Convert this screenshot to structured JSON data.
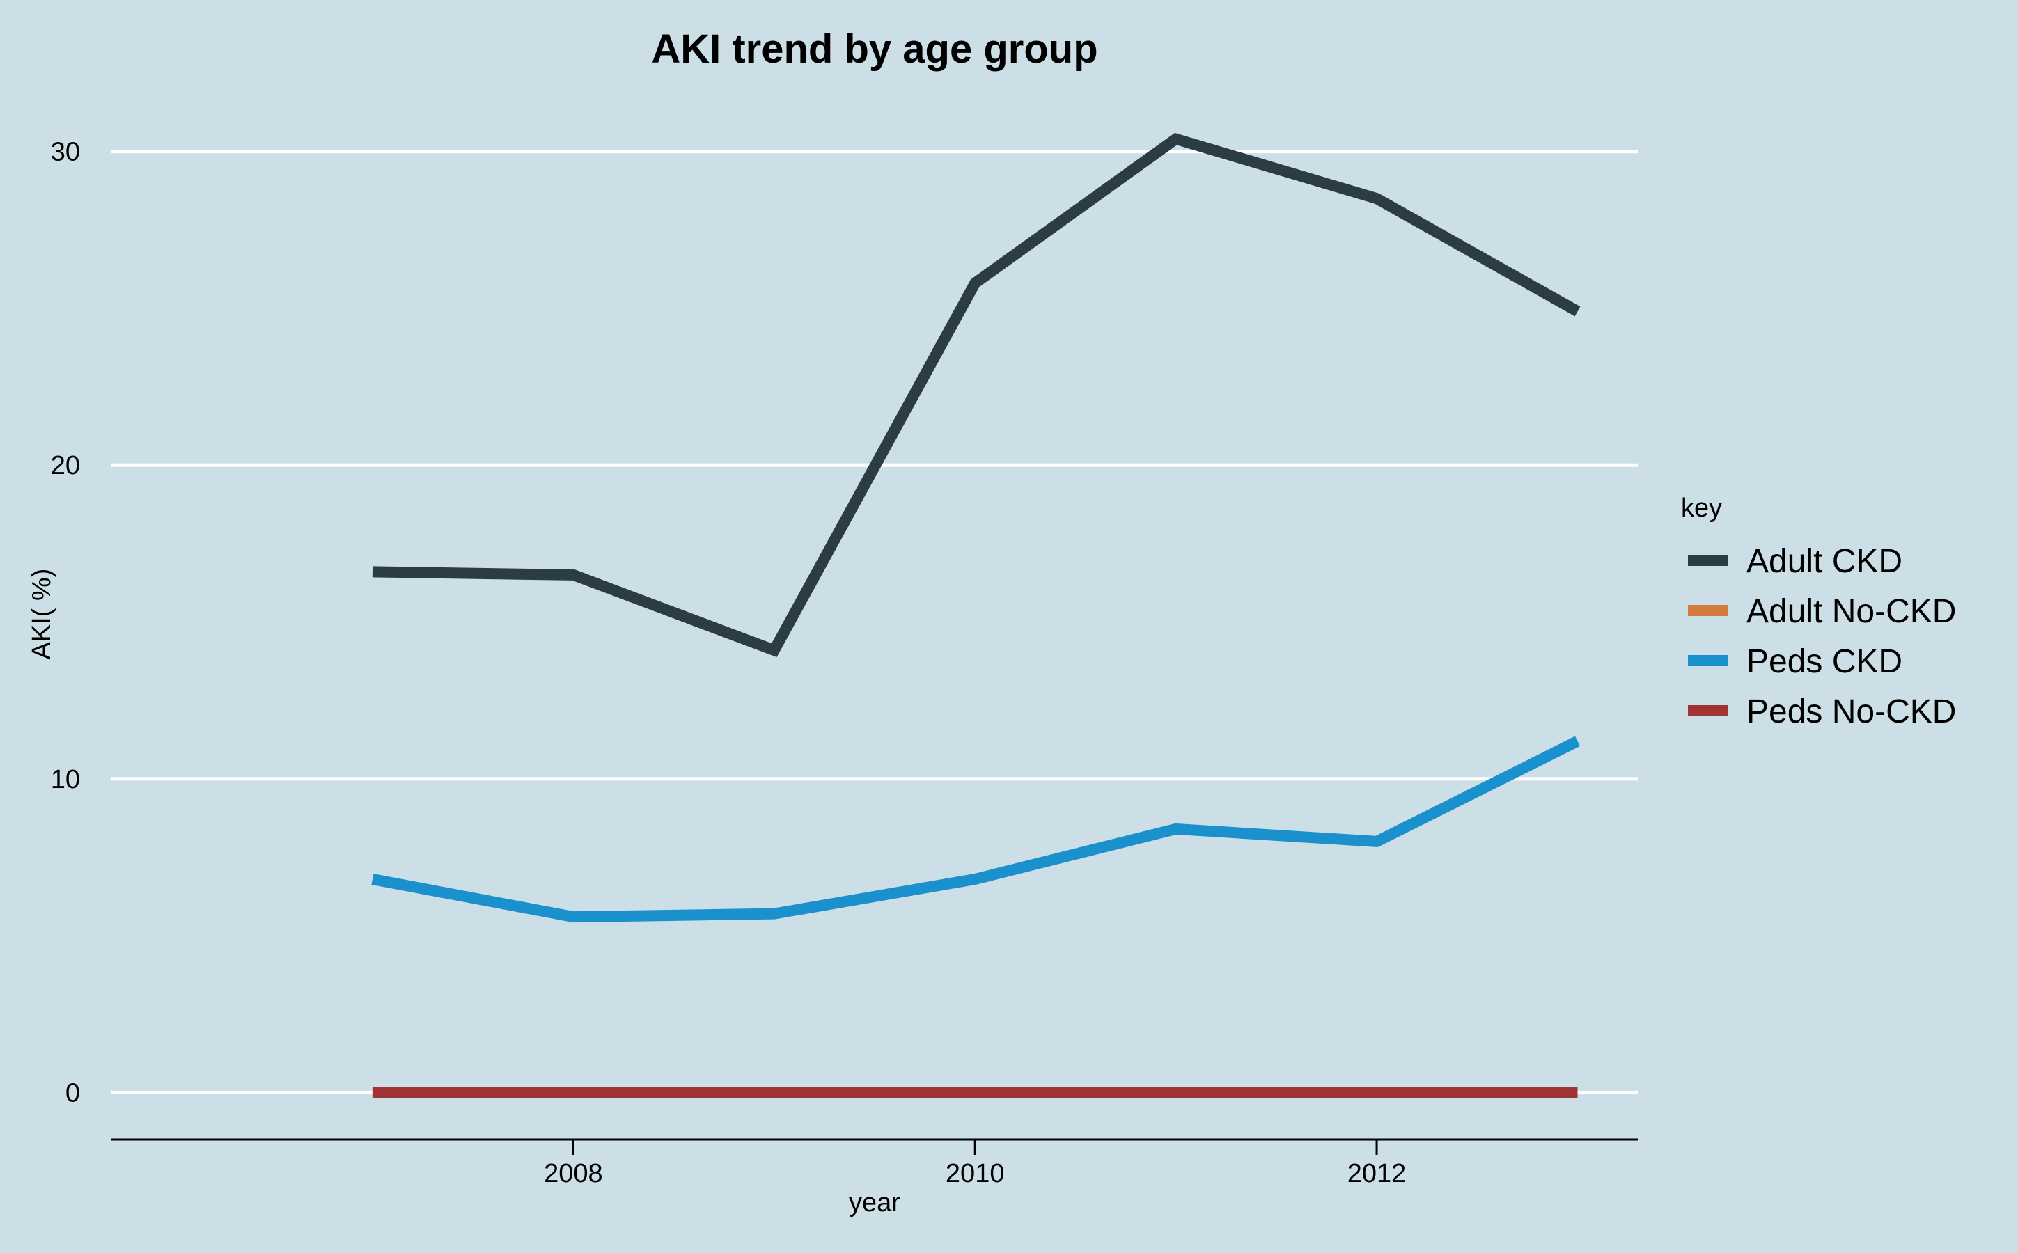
{
  "chart_data": {
    "type": "line",
    "title": "AKI trend by age group",
    "xlabel": "year",
    "ylabel": "AKI( %)",
    "x": [
      2007,
      2008,
      2009,
      2010,
      2011,
      2012,
      2013
    ],
    "xticks": [
      2008,
      2010,
      2012
    ],
    "yticks": [
      0,
      10,
      20,
      30
    ],
    "xlim": [
      2005.7,
      2013.3
    ],
    "ylim": [
      -1.5,
      31.5
    ],
    "grid": "horizontal",
    "legend_title": "key",
    "legend_position": "right",
    "series": [
      {
        "name": "Adult CKD",
        "color": "#2b3d43",
        "values": [
          16.6,
          16.5,
          14.1,
          25.8,
          30.4,
          28.5,
          24.9
        ]
      },
      {
        "name": "Adult No-CKD",
        "color": "#d27b3a",
        "values": [
          0,
          0,
          0,
          0,
          0,
          0,
          0
        ]
      },
      {
        "name": "Peds CKD",
        "color": "#1a91cc",
        "values": [
          6.8,
          5.6,
          5.7,
          6.8,
          8.4,
          8.0,
          11.2
        ]
      },
      {
        "name": "Peds No-CKD",
        "color": "#a03333",
        "values": [
          0,
          0,
          0,
          0,
          0,
          0,
          0
        ]
      }
    ]
  }
}
